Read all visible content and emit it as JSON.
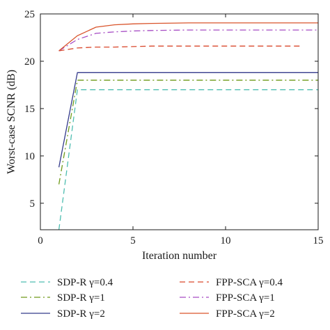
{
  "chart_data": {
    "type": "line",
    "title": "",
    "xlabel": "Iteration number",
    "ylabel": "Worst-case SCNR (dB)",
    "xlim": [
      0,
      15
    ],
    "ylim": [
      2.2,
      25
    ],
    "xticks": [
      0,
      5,
      10,
      15
    ],
    "yticks": [
      5,
      10,
      15,
      20,
      25
    ],
    "grid": false,
    "legend_position": "bottom",
    "series": [
      {
        "name": "SDP-R γ=0.4",
        "color": "#4dbdb0",
        "dash": "dash",
        "x": [
          1,
          2,
          15
        ],
        "y": [
          2.2,
          17.0,
          17.0
        ]
      },
      {
        "name": "SDP-R γ=1",
        "color": "#6f9a1a",
        "dash": "dashdot",
        "x": [
          1,
          2,
          15
        ],
        "y": [
          7.0,
          18.0,
          18.0
        ]
      },
      {
        "name": "SDP-R γ=2",
        "color": "#333a8a",
        "dash": "solid",
        "x": [
          1,
          2,
          15
        ],
        "y": [
          8.8,
          18.8,
          18.8
        ]
      },
      {
        "name": "FPP-SCA γ=0.4",
        "color": "#d9472b",
        "dash": "dash",
        "x": [
          1,
          2,
          3,
          4,
          5,
          6,
          7,
          8,
          9,
          10,
          11,
          12,
          13,
          14
        ],
        "y": [
          21.1,
          21.4,
          21.5,
          21.5,
          21.55,
          21.6,
          21.6,
          21.6,
          21.6,
          21.6,
          21.6,
          21.6,
          21.6,
          21.6
        ]
      },
      {
        "name": "FPP-SCA γ=1",
        "color": "#a64bc4",
        "dash": "dashdot",
        "x": [
          1,
          2,
          3,
          4,
          5,
          6,
          8,
          10,
          12,
          15
        ],
        "y": [
          21.1,
          22.3,
          22.95,
          23.1,
          23.2,
          23.25,
          23.3,
          23.3,
          23.3,
          23.3
        ]
      },
      {
        "name": "FPP-SCA γ=2",
        "color": "#d9542b",
        "dash": "solid",
        "x": [
          1,
          2,
          3,
          4,
          5,
          6,
          8,
          10,
          12,
          15
        ],
        "y": [
          21.1,
          22.7,
          23.6,
          23.85,
          23.95,
          24.0,
          24.05,
          24.05,
          24.05,
          24.05
        ]
      }
    ]
  }
}
